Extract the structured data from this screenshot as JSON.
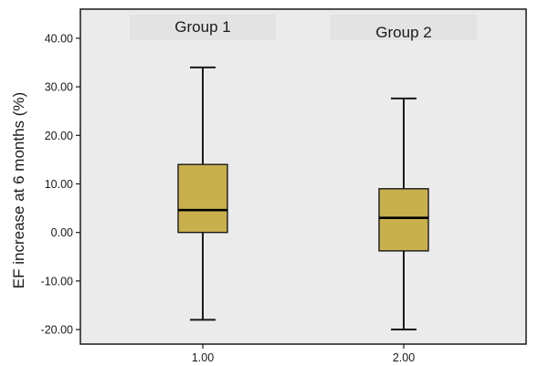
{
  "chart_data": {
    "type": "boxplot",
    "ylabel": "EF increase at 6 months (%)",
    "xlabel": "",
    "ylim": [
      -23,
      46
    ],
    "yticks": [
      -20,
      -10,
      0,
      10,
      20,
      30,
      40
    ],
    "ytick_labels": [
      "-20.00",
      "-10.00",
      "0.00",
      "10.00",
      "20.00",
      "30.00",
      "40.00"
    ],
    "grid": false,
    "box_color": "#c9b04f",
    "plot_background": "#ebebeb",
    "boxes": [
      {
        "x_label": "1.00",
        "group_label": "Group 1",
        "min": -18,
        "q1": 0,
        "median": 4.6,
        "q3": 14,
        "max": 34
      },
      {
        "x_label": "2.00",
        "group_label": "Group 2",
        "min": -20,
        "q1": -3.8,
        "median": 3.0,
        "q3": 9,
        "max": 27.6
      }
    ]
  }
}
